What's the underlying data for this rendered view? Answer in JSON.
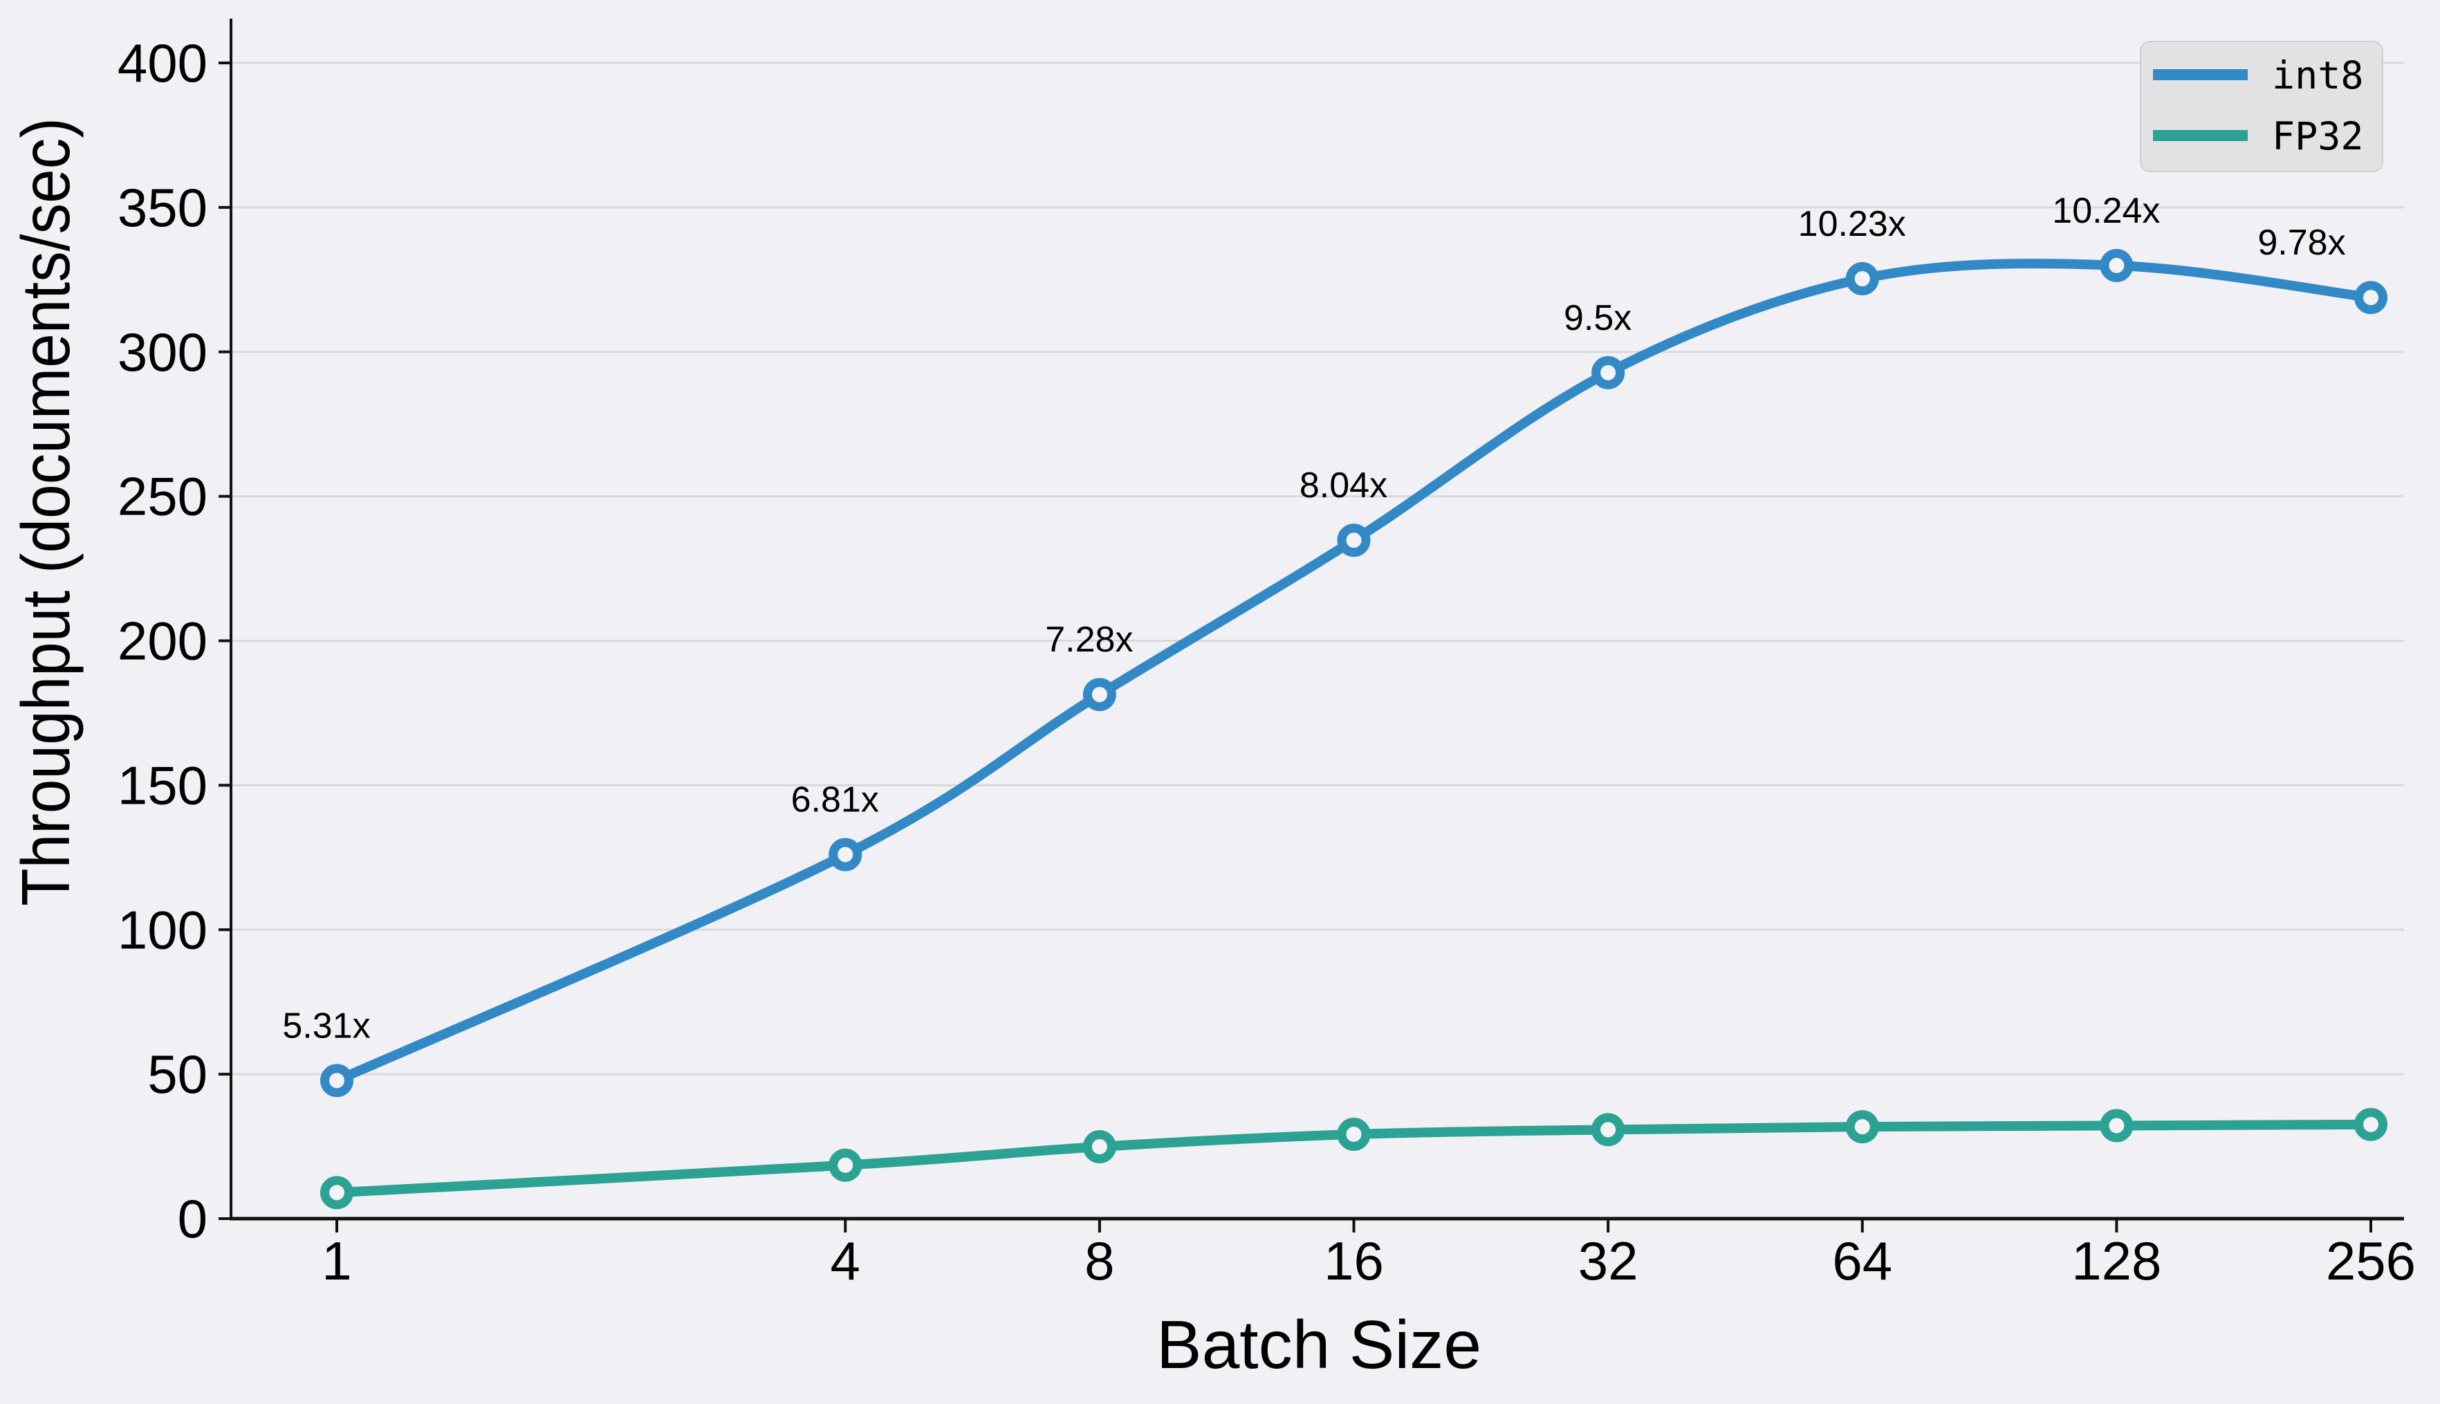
{
  "figure": {
    "background_color": "#f0f0f5",
    "grid_color": "#d9d9dd",
    "spine_color": "#111111",
    "legend_background": "#e2e2e4",
    "legend_border": "#cfcfd2"
  },
  "chart_data": {
    "type": "line",
    "title": "",
    "xlabel": "Batch Size",
    "ylabel": "Throughput (documents/sec)",
    "x_scale": "log2",
    "categories": [
      1,
      4,
      8,
      16,
      32,
      64,
      128,
      256
    ],
    "x_tick_labels": [
      "1",
      "4",
      "8",
      "16",
      "32",
      "64",
      "128",
      "256"
    ],
    "y_ticks": [
      0,
      50,
      100,
      150,
      200,
      250,
      300,
      350,
      400
    ],
    "ylim": [
      0,
      415
    ],
    "grid": "horizontal",
    "legend_position": "upper right",
    "series": [
      {
        "name": "int8",
        "color": "#3389c6",
        "values": [
          47.8,
          126.0,
          181.4,
          234.8,
          292.8,
          325.3,
          329.9,
          318.8
        ]
      },
      {
        "name": "FP32",
        "color": "#2ba294",
        "values": [
          9.0,
          18.5,
          24.9,
          29.2,
          30.8,
          31.8,
          32.2,
          32.6
        ]
      }
    ],
    "annotations": [
      {
        "label": "5.31x",
        "batch": 1,
        "series": "int8"
      },
      {
        "label": "6.81x",
        "batch": 4,
        "series": "int8"
      },
      {
        "label": "7.28x",
        "batch": 8,
        "series": "int8"
      },
      {
        "label": "8.04x",
        "batch": 16,
        "series": "int8"
      },
      {
        "label": "9.5x",
        "batch": 32,
        "series": "int8"
      },
      {
        "label": "10.23x",
        "batch": 64,
        "series": "int8"
      },
      {
        "label": "10.24x",
        "batch": 128,
        "series": "int8"
      },
      {
        "label": "9.78x",
        "batch": 256,
        "series": "int8"
      }
    ]
  },
  "legend": {
    "items": [
      {
        "label": "int8"
      },
      {
        "label": "FP32"
      }
    ]
  }
}
